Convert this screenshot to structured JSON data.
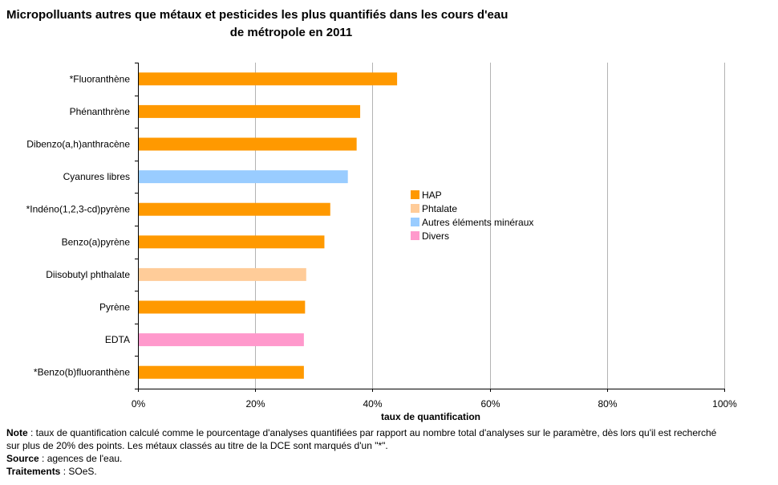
{
  "chart_data": {
    "type": "bar",
    "orientation": "horizontal",
    "title_line1": "Micropolluants autres que métaux et pesticides les plus quantifiés dans les cours d'eau",
    "title_line2": "de métropole en 2011",
    "xlabel": "taux de quantification",
    "xlim": [
      0,
      100
    ],
    "xticks": [
      "0%",
      "20%",
      "40%",
      "60%",
      "80%",
      "100%"
    ],
    "grid": true,
    "legend_placement": "right",
    "legend": [
      {
        "label": "HAP",
        "color": "#ff9900"
      },
      {
        "label": "Phtalate",
        "color": "#ffcc99"
      },
      {
        "label": "Autres éléments minéraux",
        "color": "#99ccff"
      },
      {
        "label": "Divers",
        "color": "#ff99cc"
      }
    ],
    "categories": [
      "*Fluoranthène",
      "Phénanthrène",
      "Dibenzo(a,h)anthracène",
      "Cyanures libres",
      "*Indéno(1,2,3-cd)pyrène",
      "Benzo(a)pyrène",
      "Diisobutyl phthalate",
      "Pyrène",
      "EDTA",
      "*Benzo(b)fluoranthène"
    ],
    "values": [
      44.2,
      37.9,
      37.3,
      35.8,
      32.8,
      31.8,
      28.7,
      28.5,
      28.3,
      28.3
    ],
    "groups": [
      "HAP",
      "HAP",
      "HAP",
      "Autres éléments minéraux",
      "HAP",
      "HAP",
      "Phtalate",
      "HAP",
      "Divers",
      "HAP"
    ]
  },
  "notes": {
    "note_label": "Note",
    "note_text": " : taux de quantification calculé comme le pourcentage d'analyses quantifiées par rapport au nombre total d'analyses sur le paramètre, dès lors qu'il est recherché sur plus de 20% des points. Les métaux classés au titre de la DCE sont marqués d'un \"*\".",
    "source_label": "Source",
    "source_text": " : agences de l'eau.",
    "treatment_label": "Traitements",
    "treatment_text": " : SOeS."
  }
}
